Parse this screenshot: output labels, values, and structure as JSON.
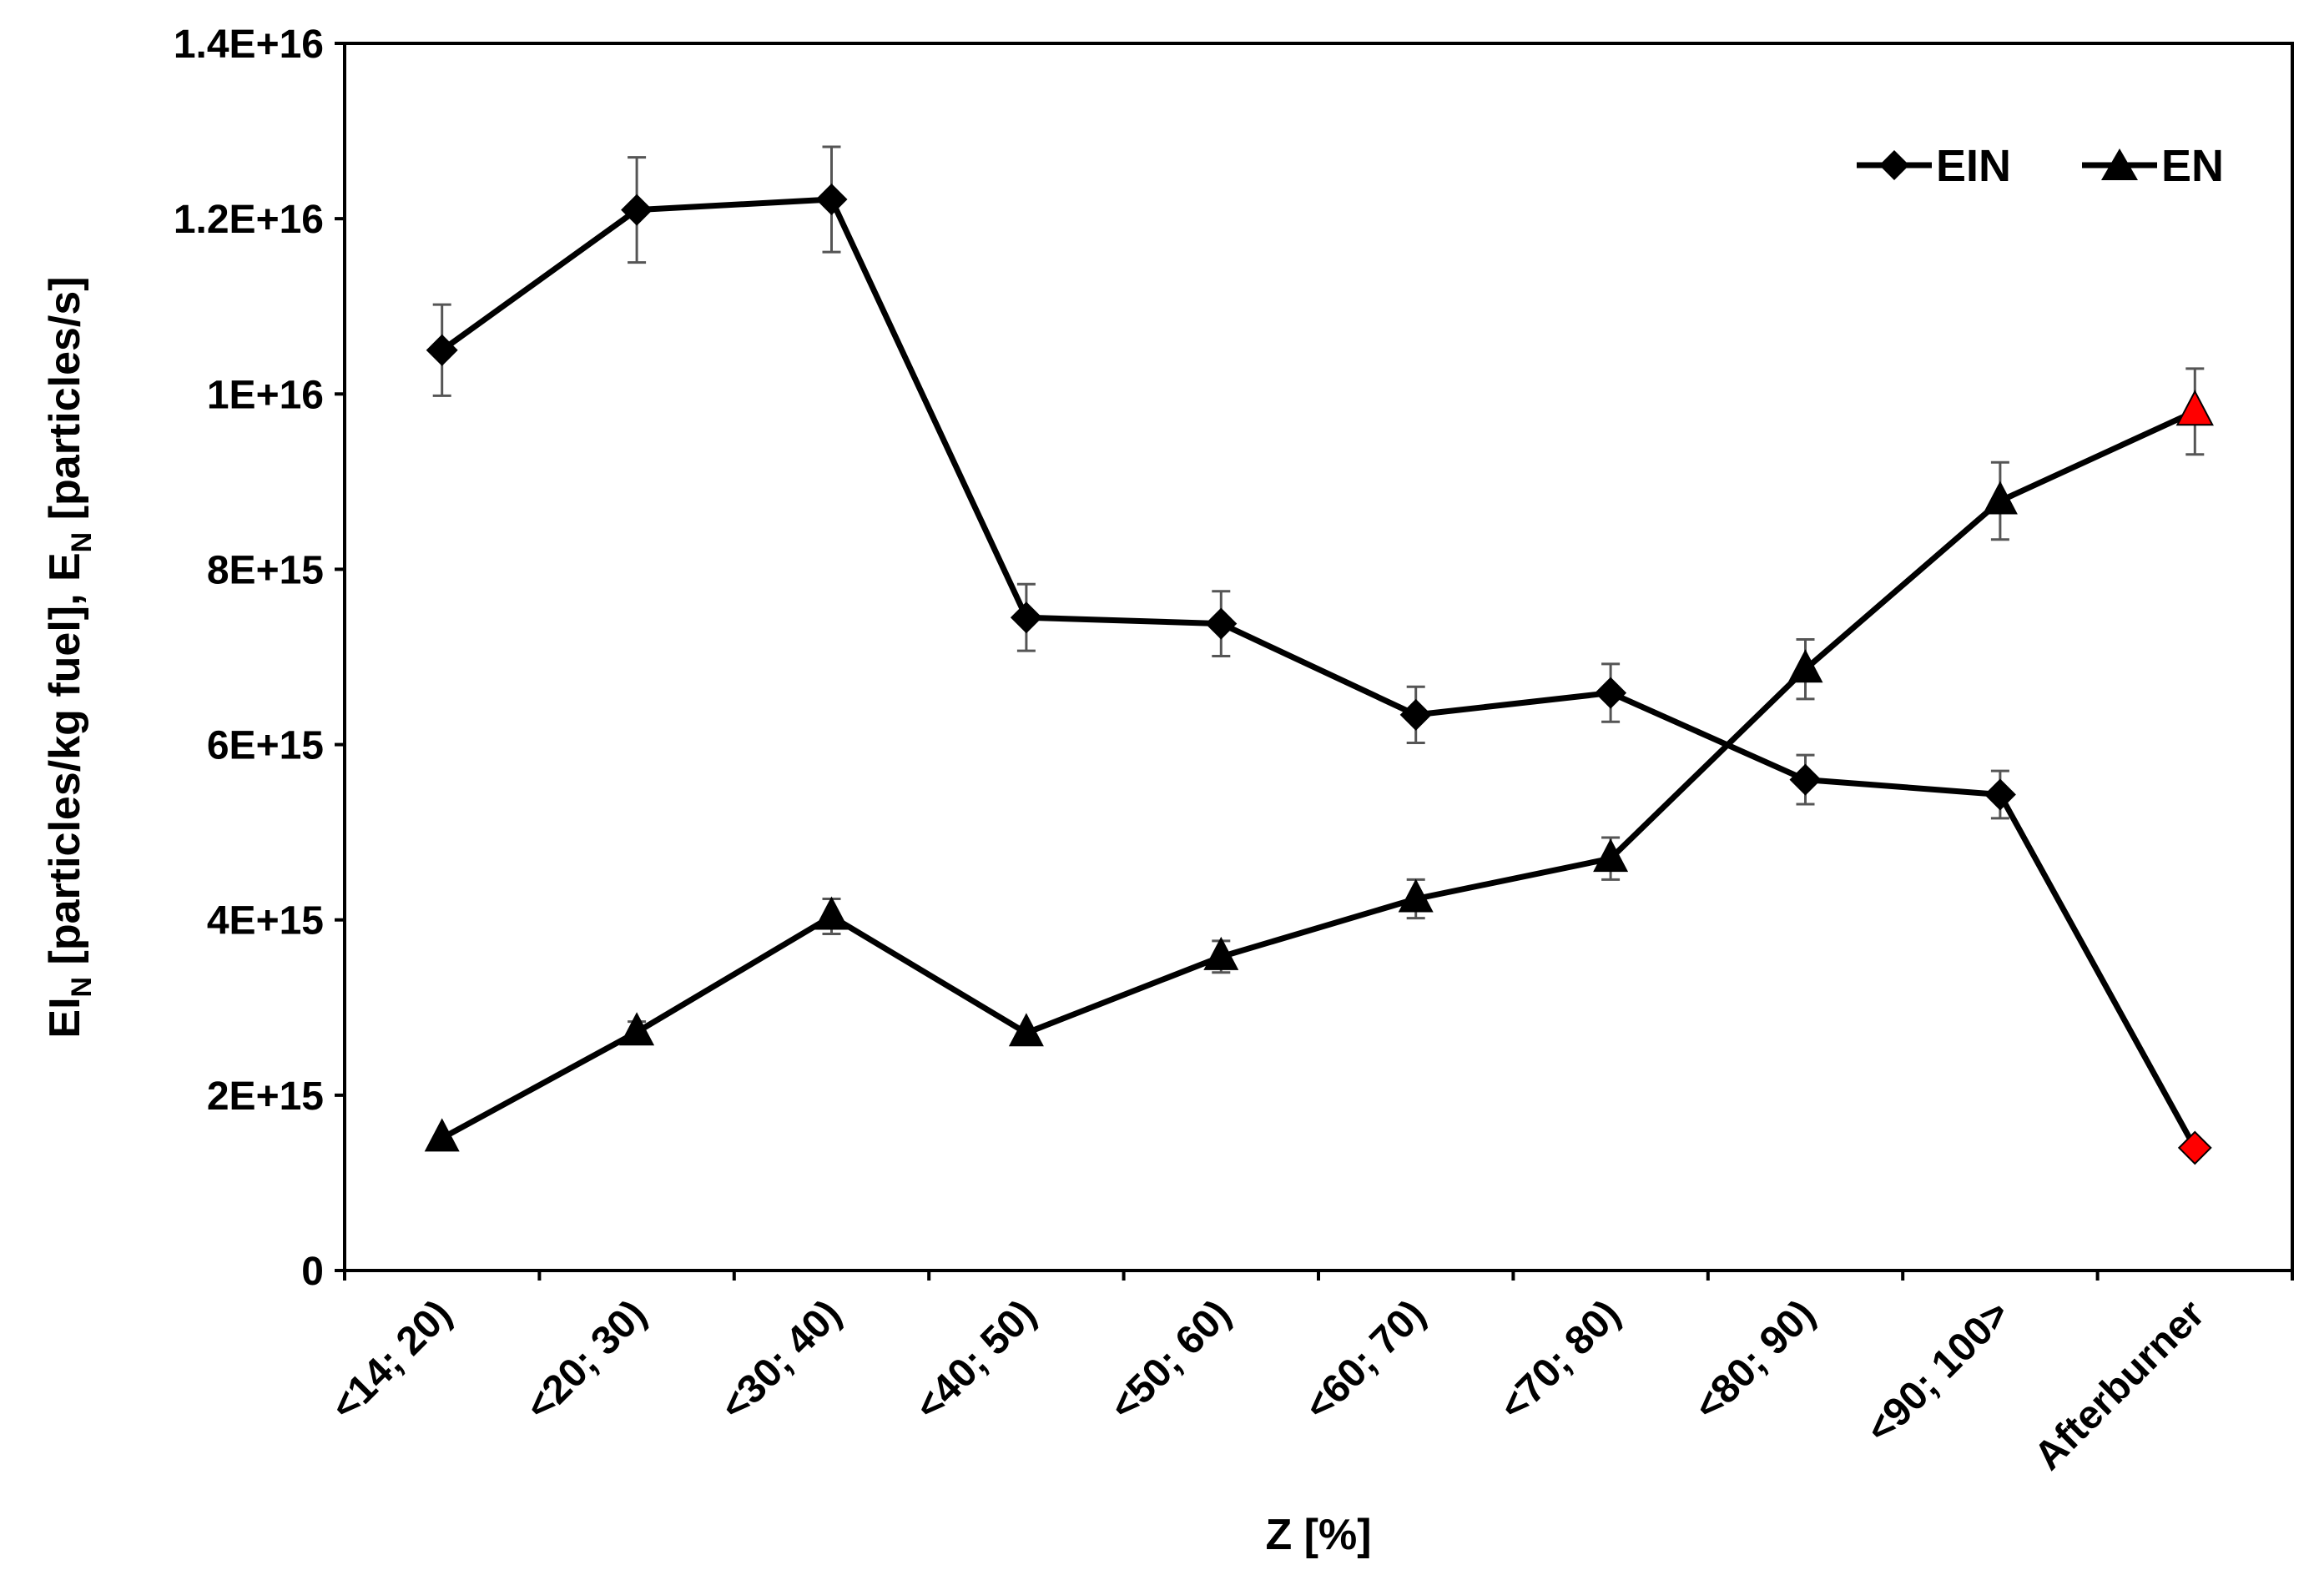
{
  "chart_data": {
    "type": "line",
    "xlabel": "Z [%]",
    "ylabel": {
      "part1": "EI",
      "part1_sub": "N",
      "part2": " [particles/kg fuel], E",
      "part2_sub": "N",
      "part3": " [particles/s]"
    },
    "ylim": [
      0,
      14000000000000000
    ],
    "yticks": [
      0,
      2000000000000000,
      4000000000000000,
      6000000000000000,
      8000000000000000,
      10000000000000000,
      12000000000000000,
      14000000000000000
    ],
    "ytick_labels": [
      "0",
      "2E+15",
      "4E+15",
      "6E+15",
      "8E+15",
      "1E+16",
      "1.2E+16",
      "1.4E+16"
    ],
    "categories": [
      "<14; 20)",
      "<20; 30)",
      "<30; 40)",
      "<40; 50)",
      "<50; 60)",
      "<60; 70)",
      "<70; 80)",
      "<80; 90)",
      "<90; 100>",
      "Afterburner"
    ],
    "grid": false,
    "legend_position": "top-right",
    "highlight_color": "#ff0000",
    "series": [
      {
        "name": "EIN",
        "marker": "diamond",
        "color": "#000000",
        "values": [
          10500000000000000,
          12100000000000000,
          12220000000000000,
          7450000000000000,
          7380000000000000,
          6340000000000000,
          6590000000000000,
          5600000000000000,
          5430000000000000,
          1400000000000000
        ],
        "errors": [
          520000000000000,
          600000000000000,
          600000000000000,
          380000000000000,
          370000000000000,
          320000000000000,
          330000000000000,
          280000000000000,
          270000000000000,
          0
        ],
        "highlight_last": true
      },
      {
        "name": "EN",
        "marker": "triangle",
        "color": "#000000",
        "values": [
          1510000000000000,
          2720000000000000,
          4040000000000000,
          2710000000000000,
          3580000000000000,
          4240000000000000,
          4700000000000000,
          6860000000000000,
          8780000000000000,
          9800000000000000
        ],
        "errors": [
          0,
          120000000000000,
          200000000000000,
          0,
          180000000000000,
          220000000000000,
          240000000000000,
          340000000000000,
          440000000000000,
          490000000000000
        ],
        "highlight_last": true
      }
    ]
  }
}
